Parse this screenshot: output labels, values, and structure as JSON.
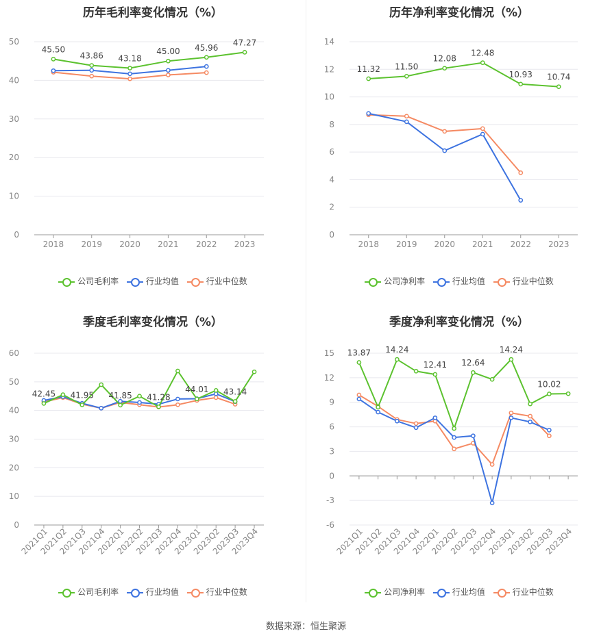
{
  "footer": "数据来源：恒生聚源",
  "colors": {
    "company": "#5cc22f",
    "avg": "#3d73e0",
    "median": "#f58a63"
  },
  "chart_data": [
    {
      "type": "line",
      "title": "历年毛利率变化情况（%）",
      "categories": [
        "2018",
        "2019",
        "2020",
        "2021",
        "2022",
        "2023"
      ],
      "ylim": [
        0,
        50
      ],
      "yticks": [
        0,
        10,
        20,
        30,
        40,
        50
      ],
      "series": [
        {
          "name": "公司毛利率",
          "values": [
            45.5,
            43.86,
            43.18,
            45.0,
            45.96,
            47.27
          ],
          "labels": [
            "45.50",
            "43.86",
            "43.18",
            "45.00",
            "45.96",
            "47.27"
          ]
        },
        {
          "name": "行业均值",
          "values": [
            42.5,
            42.6,
            41.7,
            42.6,
            43.6,
            null
          ]
        },
        {
          "name": "行业中位数",
          "values": [
            42.1,
            41.1,
            40.4,
            41.4,
            42.0,
            null
          ]
        }
      ],
      "legend": "bottom"
    },
    {
      "type": "line",
      "title": "历年净利率变化情况（%）",
      "categories": [
        "2018",
        "2019",
        "2020",
        "2021",
        "2022",
        "2023"
      ],
      "ylim": [
        0,
        14
      ],
      "yticks": [
        0,
        2,
        4,
        6,
        8,
        10,
        12,
        14
      ],
      "series": [
        {
          "name": "公司净利率",
          "values": [
            11.32,
            11.5,
            12.08,
            12.48,
            10.93,
            10.74
          ],
          "labels": [
            "11.32",
            "11.50",
            "12.08",
            "12.48",
            "10.93",
            "10.74"
          ]
        },
        {
          "name": "行业均值",
          "values": [
            8.8,
            8.2,
            6.1,
            7.3,
            2.5,
            null
          ]
        },
        {
          "name": "行业中位数",
          "values": [
            8.7,
            8.6,
            7.5,
            7.7,
            4.5,
            null
          ]
        }
      ],
      "legend": "bottom"
    },
    {
      "type": "line",
      "title": "季度毛利率变化情况（%）",
      "categories": [
        "2021Q1",
        "2021Q2",
        "2021Q3",
        "2021Q4",
        "2022Q1",
        "2022Q2",
        "2022Q3",
        "2022Q4",
        "2023Q1",
        "2023Q2",
        "2023Q3",
        "2023Q4"
      ],
      "ylim": [
        0,
        60
      ],
      "yticks": [
        0,
        10,
        20,
        30,
        40,
        50,
        60
      ],
      "series": [
        {
          "name": "公司毛利率",
          "values": [
            42.45,
            45.5,
            41.95,
            49.0,
            41.85,
            45.0,
            41.28,
            53.8,
            44.01,
            47.0,
            43.14,
            53.5
          ],
          "labels": [
            "42.45",
            "",
            "41.95",
            "",
            "41.85",
            "",
            "41.28",
            "",
            "44.01",
            "",
            "43.14",
            ""
          ]
        },
        {
          "name": "行业均值",
          "values": [
            43.5,
            44.8,
            42.5,
            40.8,
            43.2,
            42.8,
            42.2,
            44.0,
            44.1,
            45.8,
            43.1,
            null
          ]
        },
        {
          "name": "行业中位数",
          "values": [
            43.0,
            44.5,
            42.2,
            40.8,
            42.8,
            42.0,
            41.2,
            42.0,
            43.5,
            44.5,
            42.2,
            null
          ]
        }
      ],
      "legend": "bottom"
    },
    {
      "type": "line",
      "title": "季度净利率变化情况（%）",
      "categories": [
        "2021Q1",
        "2021Q2",
        "2021Q3",
        "2021Q4",
        "2022Q1",
        "2022Q2",
        "2022Q3",
        "2022Q4",
        "2023Q1",
        "2023Q2",
        "2023Q3",
        "2023Q4"
      ],
      "ylim": [
        -6,
        15
      ],
      "yticks": [
        -6,
        -3,
        0,
        3,
        6,
        9,
        12,
        15
      ],
      "series": [
        {
          "name": "公司净利率",
          "values": [
            13.87,
            8.4,
            14.24,
            12.8,
            12.41,
            5.8,
            12.64,
            11.8,
            14.24,
            8.8,
            10.02,
            10.05
          ],
          "labels": [
            "13.87",
            "",
            "14.24",
            "",
            "12.41",
            "",
            "12.64",
            "",
            "14.24",
            "",
            "10.02",
            ""
          ]
        },
        {
          "name": "行业均值",
          "values": [
            9.4,
            7.8,
            6.7,
            5.9,
            7.1,
            4.7,
            4.9,
            -3.3,
            7.1,
            6.6,
            5.6,
            null
          ]
        },
        {
          "name": "行业中位数",
          "values": [
            9.9,
            8.5,
            6.9,
            6.4,
            6.7,
            3.3,
            4.0,
            1.4,
            7.7,
            7.3,
            4.9,
            null
          ]
        }
      ],
      "legend": "bottom"
    }
  ]
}
